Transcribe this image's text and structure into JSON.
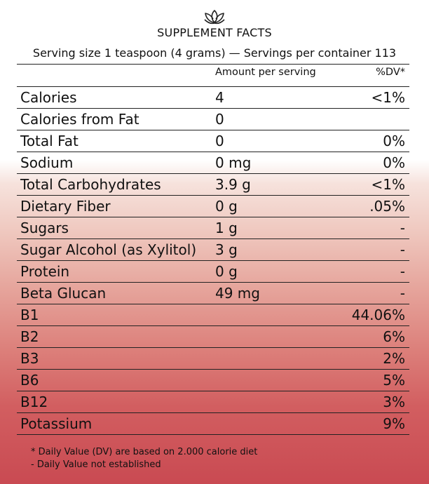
{
  "title": "SUPPLEMENT FACTS",
  "serving": "Serving size 1 teaspoon (4 grams) — Servings per container 113",
  "header": {
    "amount": "Amount per serving",
    "dv": "%DV*"
  },
  "rows": [
    {
      "name": "Calories",
      "amount": "4",
      "dv": "<1%"
    },
    {
      "name": "Calories from Fat",
      "amount": "0",
      "dv": ""
    },
    {
      "name": "Total Fat",
      "amount": "0",
      "dv": "0%"
    },
    {
      "name": "Sodium",
      "amount": "0 mg",
      "dv": "0%"
    },
    {
      "name": "Total Carbohydrates",
      "amount": "3.9 g",
      "dv": "<1%"
    },
    {
      "name": "Dietary Fiber",
      "amount": "0 g",
      "dv": ".05%"
    },
    {
      "name": "Sugars",
      "amount": "1 g",
      "dv": "-"
    },
    {
      "name": "Sugar Alcohol (as Xylitol)",
      "amount": "3 g",
      "dv": "-"
    },
    {
      "name": "Protein",
      "amount": "0 g",
      "dv": "-"
    },
    {
      "name": "Beta Glucan",
      "amount": "49 mg",
      "dv": "-"
    },
    {
      "name": "B1",
      "amount": "",
      "dv": "44.06%"
    },
    {
      "name": "B2",
      "amount": "",
      "dv": "6%"
    },
    {
      "name": "B3",
      "amount": "",
      "dv": "2%"
    },
    {
      "name": "B6",
      "amount": "",
      "dv": "5%"
    },
    {
      "name": "B12",
      "amount": "",
      "dv": "3%"
    },
    {
      "name": "Potassium",
      "amount": "",
      "dv": "9%"
    }
  ],
  "footnotes": [
    "* Daily Value (DV) are based on 2.000 calorie diet",
    "- Daily Value not established"
  ],
  "logo_icon": "lotus-icon"
}
